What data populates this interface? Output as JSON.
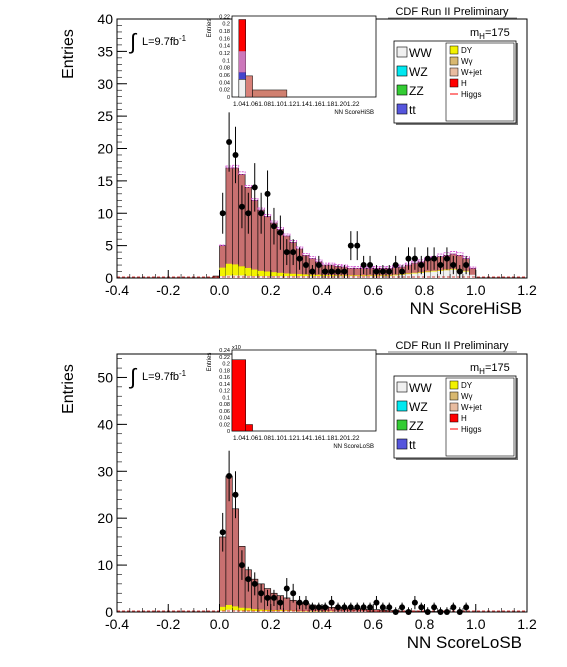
{
  "charts": [
    {
      "id": "hisb",
      "header": "CDF Run II Preliminary",
      "lumi_prefix": "L=9.7fb",
      "lumi_sup": "-1",
      "mass_label": "m",
      "mass_sub": "H",
      "mass_value": "=175",
      "ylabel": "Entries",
      "xlabel": "NN ScoreHiSB",
      "inset": {
        "ylabel": "Entries",
        "xlabel": "NN ScoreHiSB",
        "exponent": "",
        "y_ticks": [
          "0",
          "0.02",
          "0.04",
          "0.06",
          "0.08",
          "0.1",
          "0.12",
          "0.14",
          "0.16",
          "0.18",
          "0.2",
          "0.22"
        ],
        "x_tick_text": "1.041.061.081.101.121.141.161.181.201.22"
      }
    },
    {
      "id": "losb",
      "header": "CDF Run II Preliminary",
      "lumi_prefix": "L=9.7fb",
      "lumi_sup": "-1",
      "mass_label": "m",
      "mass_sub": "H",
      "mass_value": "=175",
      "ylabel": "Entries",
      "xlabel": "NN ScoreLoSB",
      "inset": {
        "ylabel": "Entries",
        "xlabel": "NN ScoreLoSB",
        "exponent": "x10",
        "y_ticks": [
          "0",
          "0.02",
          "0.04",
          "0.06",
          "0.08",
          "0.1",
          "0.12",
          "0.14",
          "0.16",
          "0.18",
          "0.2",
          "0.22",
          "0.24"
        ],
        "x_tick_text": "1.041.061.081.101.121.141.161.181.201.22"
      }
    }
  ],
  "legend": {
    "left": [
      {
        "label": "WW",
        "color": "#f0f0f0"
      },
      {
        "label": "WZ",
        "color": "#00e8f0"
      },
      {
        "label": "ZZ",
        "color": "#33cc33"
      },
      {
        "label": "tt",
        "color": "#5555dd"
      }
    ],
    "right": [
      {
        "label": "DY",
        "color": "#f2f200"
      },
      {
        "label": "Wγ",
        "color": "#d8b870"
      },
      {
        "label": "W+jet",
        "color": "#e8bca0"
      },
      {
        "label": "H",
        "color": "#ff0000"
      },
      {
        "label": "Higgs",
        "color": "#ff0000"
      }
    ]
  },
  "chart_data": [
    {
      "type": "bar",
      "title": "NN ScoreHiSB",
      "xlabel": "NN ScoreHiSB",
      "ylabel": "Entries",
      "xlim": [
        -0.4,
        1.2
      ],
      "ylim": [
        0,
        40
      ],
      "x_ticks": [
        -0.4,
        -0.2,
        0.0,
        0.2,
        0.4,
        0.6,
        0.8,
        1.0,
        1.2
      ],
      "y_ticks": [
        0,
        5,
        10,
        15,
        20,
        25,
        30,
        35,
        40
      ],
      "bin_width": 0.025,
      "bin_start": -0.1,
      "series": [
        {
          "name": "total",
          "values": [
            0,
            0,
            0,
            0.3,
            5,
            17,
            17,
            16,
            14,
            12,
            10.5,
            9.5,
            8.5,
            7.5,
            6.5,
            5.5,
            4.5,
            3.5,
            3,
            2.5,
            2,
            2,
            1.8,
            1.7,
            1.5,
            1.5,
            1.5,
            1.5,
            1.5,
            1.5,
            1.5,
            1.6,
            1.7,
            2,
            2.3,
            2.5,
            2.8,
            3,
            3.3,
            3.5,
            3.7,
            3.5,
            3,
            1.5,
            0
          ]
        },
        {
          "name": "DY",
          "values": [
            0,
            0,
            0,
            0,
            1.3,
            1.8,
            1.7,
            1.4,
            1.2,
            1,
            0.8,
            0.7,
            0.6,
            0.5,
            0.4,
            0.35,
            0.3,
            0.25,
            0.2,
            0.2,
            0.15,
            0.15,
            0.1,
            0.1,
            0.1,
            0.1,
            0.1,
            0.1,
            0.1,
            0.1,
            0.1,
            0.1,
            0.1,
            0.1,
            0.1,
            0.1,
            0.1,
            0.1,
            0.1,
            0.1,
            0.1,
            0.1,
            0.1,
            0,
            0
          ]
        },
        {
          "name": "WW",
          "values": [
            0,
            0,
            0,
            0,
            0.3,
            0.4,
            0.4,
            0.4,
            0.35,
            0.3,
            0.3,
            0.3,
            0.3,
            0.3,
            0.3,
            0.3,
            0.3,
            0.3,
            0.3,
            0.3,
            0.3,
            0.3,
            0.3,
            0.3,
            0.3,
            0.3,
            0.3,
            0.3,
            0.3,
            0.3,
            0.3,
            0.4,
            0.5,
            0.6,
            0.7,
            0.8,
            0.9,
            1,
            1.1,
            1.2,
            1.3,
            1.2,
            1,
            0.5,
            0
          ]
        },
        {
          "name": "Higgs",
          "values": [
            0,
            0,
            0,
            0,
            0.1,
            0.3,
            0.4,
            0.4,
            0.3,
            0.3,
            0.3,
            0.3,
            0.3,
            0.3,
            0.3,
            0.3,
            0.3,
            0.3,
            0.3,
            0.3,
            0.3,
            0.3,
            0.3,
            0.3,
            0.3,
            0.3,
            0.3,
            0.3,
            0.3,
            0.3,
            0.3,
            0.3,
            0.3,
            0.3,
            0.3,
            0.3,
            0.3,
            0.3,
            0.4,
            0.4,
            0.4,
            0.4,
            0.3,
            0.2,
            0
          ]
        },
        {
          "name": "Data",
          "x": [
            0.0,
            0.025,
            0.05,
            0.075,
            0.1,
            0.125,
            0.15,
            0.175,
            0.2,
            0.225,
            0.25,
            0.275,
            0.3,
            0.325,
            0.35,
            0.375,
            0.4,
            0.425,
            0.45,
            0.475,
            0.5,
            0.525,
            0.55,
            0.575,
            0.6,
            0.625,
            0.65,
            0.675,
            0.7,
            0.725,
            0.75,
            0.775,
            0.8,
            0.825,
            0.85,
            0.875,
            0.9,
            0.925,
            0.95
          ],
          "values": [
            10,
            21,
            19,
            11,
            10,
            14,
            10,
            13,
            8,
            7,
            4,
            4,
            3,
            2,
            1,
            2,
            1,
            1,
            1,
            1,
            5,
            5,
            2,
            2,
            1,
            1,
            1,
            2,
            1,
            3,
            3,
            2,
            3,
            3,
            2,
            3,
            2,
            1,
            2
          ]
        }
      ]
    },
    {
      "type": "bar",
      "title": "NN ScoreLoSB",
      "xlabel": "NN ScoreLoSB",
      "ylabel": "Entries",
      "xlim": [
        -0.4,
        1.2
      ],
      "ylim": [
        0,
        55
      ],
      "x_ticks": [
        -0.4,
        -0.2,
        0.0,
        0.2,
        0.4,
        0.6,
        0.8,
        1.0,
        1.2
      ],
      "y_ticks": [
        0,
        10,
        20,
        30,
        40,
        50
      ],
      "bin_width": 0.025,
      "bin_start": -0.1,
      "series": [
        {
          "name": "total",
          "values": [
            0,
            0,
            0,
            0,
            16,
            29,
            22,
            14,
            9,
            7,
            6,
            5,
            4,
            3.5,
            3,
            2.5,
            2,
            1.8,
            1.5,
            1.3,
            1.2,
            1,
            1,
            0.9,
            0.8,
            0.7,
            0.6,
            0.5,
            0.5,
            0.4,
            0.3,
            0.3,
            0.2,
            0.2,
            0.2,
            0.1,
            0.1,
            0.1,
            0.1,
            0,
            0
          ]
        },
        {
          "name": "DY",
          "values": [
            0,
            0,
            0,
            0,
            0.8,
            1,
            0.8,
            0.6,
            0.5,
            0.4,
            0.3,
            0.25,
            0.2,
            0.2,
            0.15,
            0.1,
            0.1,
            0.1,
            0.1,
            0.1,
            0.1,
            0.1,
            0,
            0,
            0,
            0,
            0,
            0,
            0,
            0,
            0,
            0,
            0,
            0,
            0,
            0,
            0,
            0,
            0,
            0,
            0
          ]
        },
        {
          "name": "WW",
          "values": [
            0,
            0,
            0,
            0,
            0.3,
            0.5,
            0.4,
            0.3,
            0.3,
            0.2,
            0.2,
            0.2,
            0.2,
            0.2,
            0.2,
            0.2,
            0.1,
            0.1,
            0.1,
            0.1,
            0.1,
            0.1,
            0.1,
            0.1,
            0.1,
            0.1,
            0.1,
            0,
            0,
            0,
            0,
            0,
            0,
            0,
            0,
            0,
            0,
            0,
            0,
            0,
            0
          ]
        },
        {
          "name": "Data",
          "x": [
            0.0,
            0.025,
            0.05,
            0.075,
            0.1,
            0.125,
            0.15,
            0.175,
            0.2,
            0.225,
            0.25,
            0.275,
            0.3,
            0.325,
            0.35,
            0.375,
            0.4,
            0.425,
            0.45,
            0.475,
            0.5,
            0.525,
            0.55,
            0.575,
            0.6,
            0.625,
            0.65,
            0.675,
            0.7,
            0.725,
            0.75,
            0.775,
            0.8,
            0.825,
            0.85,
            0.875,
            0.9,
            0.925,
            0.95
          ],
          "values": [
            17,
            29,
            25,
            10,
            7,
            6,
            4,
            3,
            3,
            2,
            5,
            4,
            2,
            2,
            1,
            1,
            1,
            2,
            1,
            1,
            1,
            1,
            1,
            1,
            2,
            1,
            1,
            0,
            1,
            0,
            2,
            1,
            0,
            1,
            0,
            0,
            1,
            0,
            1
          ]
        }
      ]
    }
  ],
  "inset_data": [
    {
      "bars": [
        {
          "x0": 1.03,
          "x1": 1.04,
          "value": 0.22,
          "color": "#ff0000"
        },
        {
          "x0": 1.04,
          "x1": 1.05,
          "value": 0.06,
          "color": "#d88078"
        },
        {
          "x0": 1.05,
          "x1": 1.1,
          "value": 0.02,
          "color": "#d08070"
        }
      ],
      "ylim": [
        0,
        0.23
      ],
      "xlim": [
        1.02,
        1.23
      ]
    },
    {
      "bars": [
        {
          "x0": 1.02,
          "x1": 1.04,
          "value": 0.22,
          "color": "#ff0000"
        },
        {
          "x0": 1.04,
          "x1": 1.05,
          "value": 0.02,
          "color": "#ff0000"
        }
      ],
      "ylim": [
        0,
        0.25
      ],
      "xlim": [
        1.02,
        1.23
      ]
    }
  ]
}
